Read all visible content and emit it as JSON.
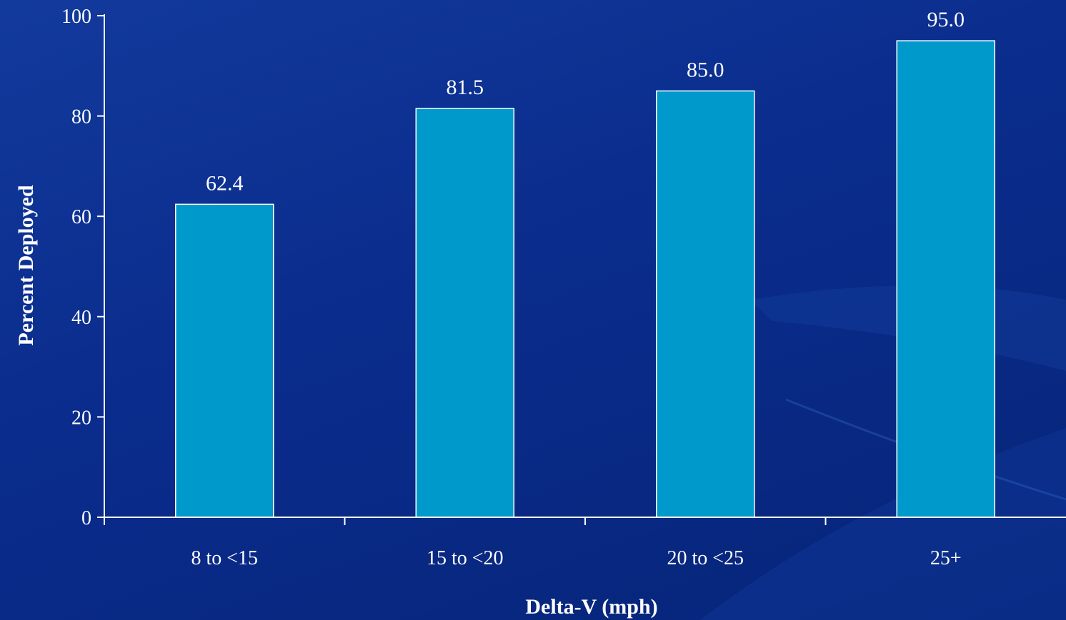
{
  "colors": {
    "background": "#0a2c8c",
    "bar_fill": "#0099cc",
    "bar_stroke": "#ffffff",
    "axis": "#ffffff",
    "text": "#ffffff"
  },
  "chart_data": {
    "type": "bar",
    "categories": [
      "8 to <15",
      "15 to <20",
      "20 to <25",
      "25+"
    ],
    "values": [
      62.4,
      81.5,
      85.0,
      95.0
    ],
    "data_labels": [
      "62.4",
      "81.5",
      "85.0",
      "95.0"
    ],
    "title": "",
    "xlabel": "Delta-V (mph)",
    "ylabel": "Percent Deployed",
    "ylim": [
      0,
      100
    ],
    "yticks": [
      0,
      20,
      40,
      60,
      80,
      100
    ],
    "grid": false,
    "legend": "none"
  }
}
